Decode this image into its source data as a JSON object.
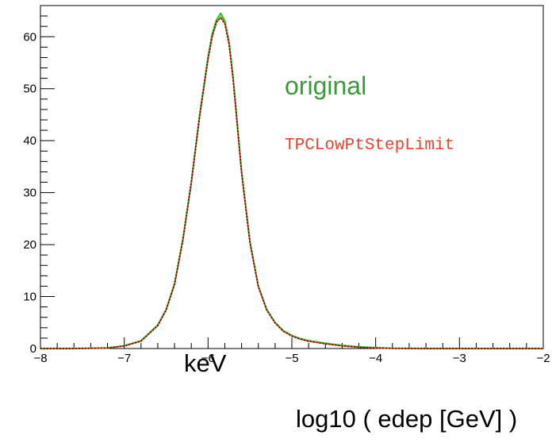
{
  "chart_data": {
    "type": "line",
    "title": "",
    "xlabel": "log10 ( edep [GeV] )",
    "ylabel": "",
    "xlim": [
      -8,
      -2
    ],
    "ylim": [
      0,
      66
    ],
    "x_ticks": [
      -8,
      -7,
      -6,
      -5,
      -4,
      -3,
      -2
    ],
    "x_tick_labels": [
      "−8",
      "−7",
      "−6",
      "−5",
      "−4",
      "−3",
      "−2"
    ],
    "y_ticks": [
      0,
      10,
      20,
      30,
      40,
      50,
      60
    ],
    "y_tick_labels": [
      "0",
      "10",
      "20",
      "30",
      "40",
      "50",
      "60"
    ],
    "annotation": "keV",
    "grid": false,
    "legend_placement": "top-right",
    "series": [
      {
        "name": "original",
        "color": "#1fd21f",
        "x": [
          -8.0,
          -7.6,
          -7.2,
          -7.0,
          -6.8,
          -6.6,
          -6.5,
          -6.4,
          -6.3,
          -6.2,
          -6.1,
          -6.0,
          -5.95,
          -5.9,
          -5.85,
          -5.8,
          -5.75,
          -5.7,
          -5.65,
          -5.6,
          -5.5,
          -5.4,
          -5.3,
          -5.2,
          -5.1,
          -5.0,
          -4.9,
          -4.8,
          -4.6,
          -4.4,
          -4.2,
          -4.0,
          -3.8,
          -3.6,
          -3.4,
          -3.0,
          -2.5,
          -2.0
        ],
        "y": [
          0,
          0,
          0.1,
          0.5,
          1.5,
          4.5,
          7.5,
          12.5,
          21.0,
          32.0,
          45.0,
          56.0,
          60.5,
          63.2,
          64.5,
          63.0,
          59.0,
          52.0,
          43.0,
          34.0,
          20.5,
          12.0,
          7.5,
          5.0,
          3.4,
          2.5,
          1.9,
          1.5,
          1.0,
          0.6,
          0.3,
          0.15,
          0.05,
          0.02,
          0,
          0,
          0,
          0
        ]
      },
      {
        "name": "TPCLowPtStepLimit",
        "color": "#e8432e",
        "x": [
          -8.0,
          -7.6,
          -7.2,
          -7.0,
          -6.8,
          -6.6,
          -6.5,
          -6.4,
          -6.3,
          -6.2,
          -6.1,
          -6.0,
          -5.95,
          -5.9,
          -5.85,
          -5.8,
          -5.75,
          -5.7,
          -5.65,
          -5.6,
          -5.5,
          -5.4,
          -5.3,
          -5.2,
          -5.1,
          -5.0,
          -4.9,
          -4.8,
          -4.6,
          -4.4,
          -4.2,
          -4.0,
          -3.8,
          -3.6,
          -3.4,
          -3.0,
          -2.5,
          -2.0
        ],
        "y": [
          0,
          0,
          0.1,
          0.5,
          1.4,
          4.4,
          7.4,
          12.3,
          20.8,
          31.8,
          44.7,
          55.6,
          60.0,
          62.7,
          63.8,
          62.6,
          58.6,
          51.7,
          42.8,
          33.8,
          20.3,
          11.9,
          7.4,
          4.9,
          3.3,
          2.4,
          1.8,
          1.4,
          0.9,
          0.5,
          0.25,
          0.1,
          0.03,
          0.01,
          0,
          0,
          0,
          0
        ]
      },
      {
        "name": "",
        "color": "#000000",
        "x": [
          -8.0,
          -7.6,
          -7.2,
          -7.0,
          -6.8,
          -6.6,
          -6.5,
          -6.4,
          -6.3,
          -6.2,
          -6.1,
          -6.0,
          -5.95,
          -5.9,
          -5.85,
          -5.8,
          -5.75,
          -5.7,
          -5.65,
          -5.6,
          -5.5,
          -5.4,
          -5.3,
          -5.2,
          -5.1,
          -5.0,
          -4.9,
          -4.8,
          -4.6,
          -4.4,
          -4.2,
          -4.0,
          -3.8,
          -3.6,
          -3.4,
          -3.0,
          -2.5,
          -2.0
        ],
        "y": [
          0,
          0,
          0.1,
          0.5,
          1.4,
          4.4,
          7.4,
          12.4,
          20.9,
          31.9,
          44.8,
          55.8,
          60.2,
          62.9,
          63.6,
          62.4,
          58.5,
          51.6,
          42.8,
          33.8,
          20.3,
          11.9,
          7.4,
          4.9,
          3.3,
          2.4,
          1.8,
          1.4,
          0.9,
          0.5,
          0.25,
          0.1,
          0.03,
          0.01,
          0,
          0,
          0,
          0
        ]
      }
    ]
  }
}
